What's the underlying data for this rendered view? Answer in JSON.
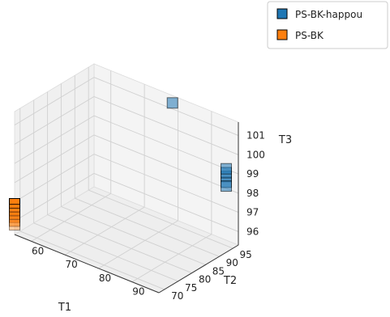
{
  "chart_data": {
    "type": "scatter3d",
    "xlabel": "T1",
    "ylabel": "T2",
    "zlabel": "T3",
    "xticks": [
      60,
      70,
      80,
      90
    ],
    "yticks": [
      70,
      75,
      80,
      85,
      90,
      95
    ],
    "zticks": [
      96,
      97,
      98,
      99,
      100,
      101
    ],
    "xlim": [
      55,
      98
    ],
    "ylim": [
      68,
      97
    ],
    "zlim": [
      95.3,
      101.7
    ],
    "grid": true,
    "legend": "top-right",
    "series": [
      {
        "name": "PS-BK-happou",
        "color": "#1f77b4",
        "points": [
          {
            "x": 96,
            "y": 95,
            "z": 98.6
          },
          {
            "x": 96,
            "y": 95,
            "z": 98.9
          },
          {
            "x": 96,
            "y": 95,
            "z": 99.1
          },
          {
            "x": 96,
            "y": 95,
            "z": 99.3
          },
          {
            "x": 96,
            "y": 95,
            "z": 98.4
          },
          {
            "x": 80,
            "y": 95,
            "z": 101.6
          }
        ]
      },
      {
        "name": "PS-BK",
        "color": "#ff7f0e",
        "points": [
          {
            "x": 55,
            "y": 68,
            "z": 96.9
          },
          {
            "x": 55,
            "y": 68,
            "z": 96.6
          },
          {
            "x": 55,
            "y": 68,
            "z": 96.4
          },
          {
            "x": 55,
            "y": 68,
            "z": 96.2
          },
          {
            "x": 55,
            "y": 68,
            "z": 96.0
          },
          {
            "x": 55,
            "y": 68,
            "z": 95.8
          }
        ]
      }
    ]
  }
}
